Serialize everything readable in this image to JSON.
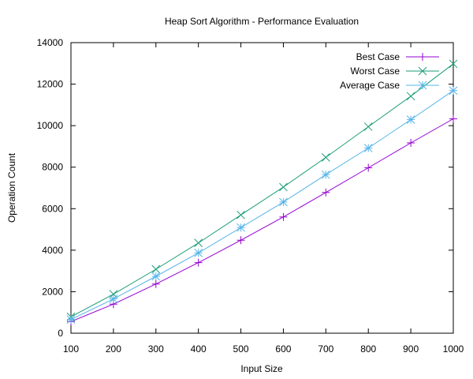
{
  "chart_data": {
    "type": "line",
    "title": "Heap Sort Algorithm - Performance Evaluation",
    "xlabel": "Input Size",
    "ylabel": "Operation Count",
    "xlim": [
      100,
      1000
    ],
    "ylim": [
      0,
      14000
    ],
    "x_ticks": [
      100,
      200,
      300,
      400,
      500,
      600,
      700,
      800,
      900,
      1000
    ],
    "y_ticks": [
      0,
      2000,
      4000,
      6000,
      8000,
      10000,
      12000,
      14000
    ],
    "grid": false,
    "legend_position": "top-right",
    "x": [
      100,
      200,
      300,
      400,
      500,
      600,
      700,
      800,
      900,
      1000
    ],
    "series": [
      {
        "name": "Best Case",
        "color": "#9400d3",
        "marker": "plus",
        "values": [
          560,
          1400,
          2370,
          3400,
          4480,
          5600,
          6780,
          7970,
          9170,
          10330
        ]
      },
      {
        "name": "Worst Case",
        "color": "#1a9e77",
        "marker": "cross",
        "values": [
          790,
          1880,
          3080,
          4350,
          5700,
          7040,
          8470,
          9950,
          11420,
          12980
        ]
      },
      {
        "name": "Average Case",
        "color": "#56b4e9",
        "marker": "star",
        "values": [
          660,
          1650,
          2740,
          3870,
          5090,
          6320,
          7640,
          8920,
          10290,
          11690
        ]
      }
    ]
  }
}
